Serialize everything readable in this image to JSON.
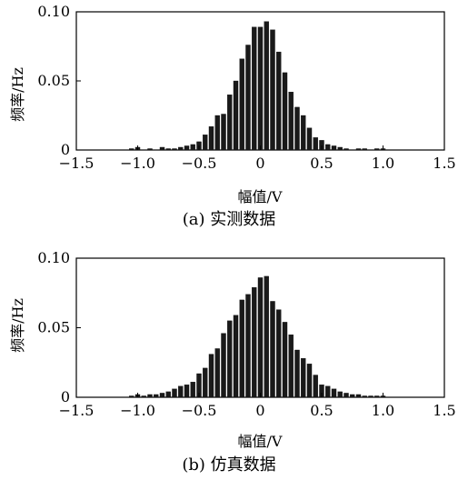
{
  "chart_data": [
    {
      "type": "bar",
      "caption": "(a)  实测数据",
      "xlabel": "幅值/V",
      "ylabel": "频率/Hz",
      "xlim": [
        -1.5,
        1.5
      ],
      "ylim": [
        0,
        0.1
      ],
      "xticks": [
        -1.5,
        -1.0,
        -0.5,
        0,
        0.5,
        1.0,
        1.5
      ],
      "xtick_labels": [
        "−1.5",
        "−1.0",
        "−0.5",
        "0",
        "0.5",
        "1.0",
        "1.5"
      ],
      "yticks": [
        0,
        0.05,
        0.1
      ],
      "ytick_labels": [
        "0",
        "0.05",
        "0.10"
      ],
      "bin_width": 0.0375,
      "x": [
        -1.05,
        -1.0,
        -0.9,
        -0.8,
        -0.75,
        -0.7,
        -0.65,
        -0.6,
        -0.55,
        -0.5,
        -0.45,
        -0.4,
        -0.35,
        -0.3,
        -0.25,
        -0.2,
        -0.15,
        -0.1,
        -0.05,
        0.0,
        0.05,
        0.1,
        0.15,
        0.2,
        0.25,
        0.3,
        0.35,
        0.4,
        0.45,
        0.5,
        0.55,
        0.6,
        0.65,
        0.7,
        0.8,
        0.85,
        0.95,
        1.0
      ],
      "values": [
        0.001,
        0.002,
        0.001,
        0.002,
        0.001,
        0.001,
        0.002,
        0.003,
        0.004,
        0.006,
        0.011,
        0.017,
        0.025,
        0.026,
        0.04,
        0.05,
        0.066,
        0.076,
        0.089,
        0.089,
        0.093,
        0.087,
        0.071,
        0.056,
        0.042,
        0.031,
        0.025,
        0.016,
        0.009,
        0.007,
        0.004,
        0.003,
        0.002,
        0.001,
        0.001,
        0.001,
        0.001,
        0.001
      ]
    },
    {
      "type": "bar",
      "caption": "(b)  仿真数据",
      "xlabel": "幅值/V",
      "ylabel": "频率/Hz",
      "xlim": [
        -1.5,
        1.5
      ],
      "ylim": [
        0,
        0.1
      ],
      "xticks": [
        -1.5,
        -1.0,
        -0.5,
        0,
        0.5,
        1.0,
        1.5
      ],
      "xtick_labels": [
        "−1.5",
        "−1.0",
        "−0.5",
        "0",
        "0.5",
        "1.0",
        "1.5"
      ],
      "yticks": [
        0,
        0.05,
        0.1
      ],
      "ytick_labels": [
        "0",
        "0.05",
        "0.10"
      ],
      "bin_width": 0.0375,
      "x": [
        -1.05,
        -1.0,
        -0.95,
        -0.9,
        -0.85,
        -0.8,
        -0.75,
        -0.7,
        -0.65,
        -0.6,
        -0.55,
        -0.5,
        -0.45,
        -0.4,
        -0.35,
        -0.3,
        -0.25,
        -0.2,
        -0.15,
        -0.1,
        -0.05,
        0.0,
        0.05,
        0.1,
        0.15,
        0.2,
        0.25,
        0.3,
        0.35,
        0.4,
        0.45,
        0.5,
        0.55,
        0.6,
        0.65,
        0.7,
        0.75,
        0.8,
        0.85,
        0.9,
        0.95,
        1.0
      ],
      "values": [
        0.001,
        0.002,
        0.001,
        0.002,
        0.002,
        0.003,
        0.004,
        0.006,
        0.008,
        0.009,
        0.011,
        0.017,
        0.021,
        0.031,
        0.035,
        0.046,
        0.055,
        0.059,
        0.07,
        0.074,
        0.079,
        0.086,
        0.087,
        0.069,
        0.063,
        0.054,
        0.045,
        0.034,
        0.028,
        0.024,
        0.016,
        0.009,
        0.008,
        0.006,
        0.004,
        0.003,
        0.002,
        0.002,
        0.001,
        0.001,
        0.001,
        0.001
      ]
    }
  ]
}
